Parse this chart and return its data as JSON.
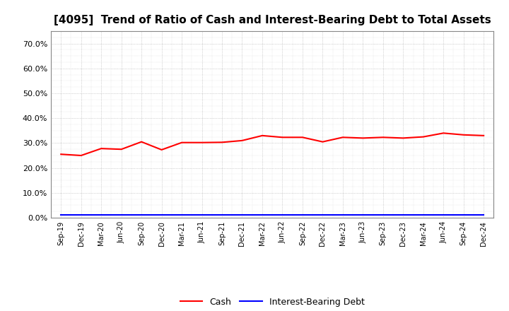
{
  "title": "[4095]  Trend of Ratio of Cash and Interest-Bearing Debt to Total Assets",
  "x_labels": [
    "Sep-19",
    "Dec-19",
    "Mar-20",
    "Jun-20",
    "Sep-20",
    "Dec-20",
    "Mar-21",
    "Jun-21",
    "Sep-21",
    "Dec-21",
    "Mar-22",
    "Jun-22",
    "Sep-22",
    "Dec-22",
    "Mar-23",
    "Jun-23",
    "Sep-23",
    "Dec-23",
    "Mar-24",
    "Jun-24",
    "Sep-24",
    "Dec-24"
  ],
  "cash": [
    0.255,
    0.25,
    0.278,
    0.275,
    0.305,
    0.273,
    0.302,
    0.302,
    0.303,
    0.31,
    0.33,
    0.323,
    0.323,
    0.305,
    0.323,
    0.32,
    0.323,
    0.32,
    0.325,
    0.34,
    0.333,
    0.33
  ],
  "interest_bearing_debt": [
    0.01,
    0.01,
    0.01,
    0.01,
    0.01,
    0.01,
    0.01,
    0.01,
    0.01,
    0.01,
    0.01,
    0.01,
    0.01,
    0.01,
    0.01,
    0.01,
    0.01,
    0.01,
    0.01,
    0.01,
    0.01,
    0.01
  ],
  "cash_color": "#FF0000",
  "debt_color": "#0000FF",
  "background_color": "#FFFFFF",
  "grid_color": "#999999",
  "ylim": [
    0.0,
    0.75
  ],
  "yticks": [
    0.0,
    0.1,
    0.2,
    0.3,
    0.4,
    0.5,
    0.6,
    0.7
  ],
  "title_fontsize": 11,
  "legend_labels": [
    "Cash",
    "Interest-Bearing Debt"
  ],
  "line_width": 1.5
}
